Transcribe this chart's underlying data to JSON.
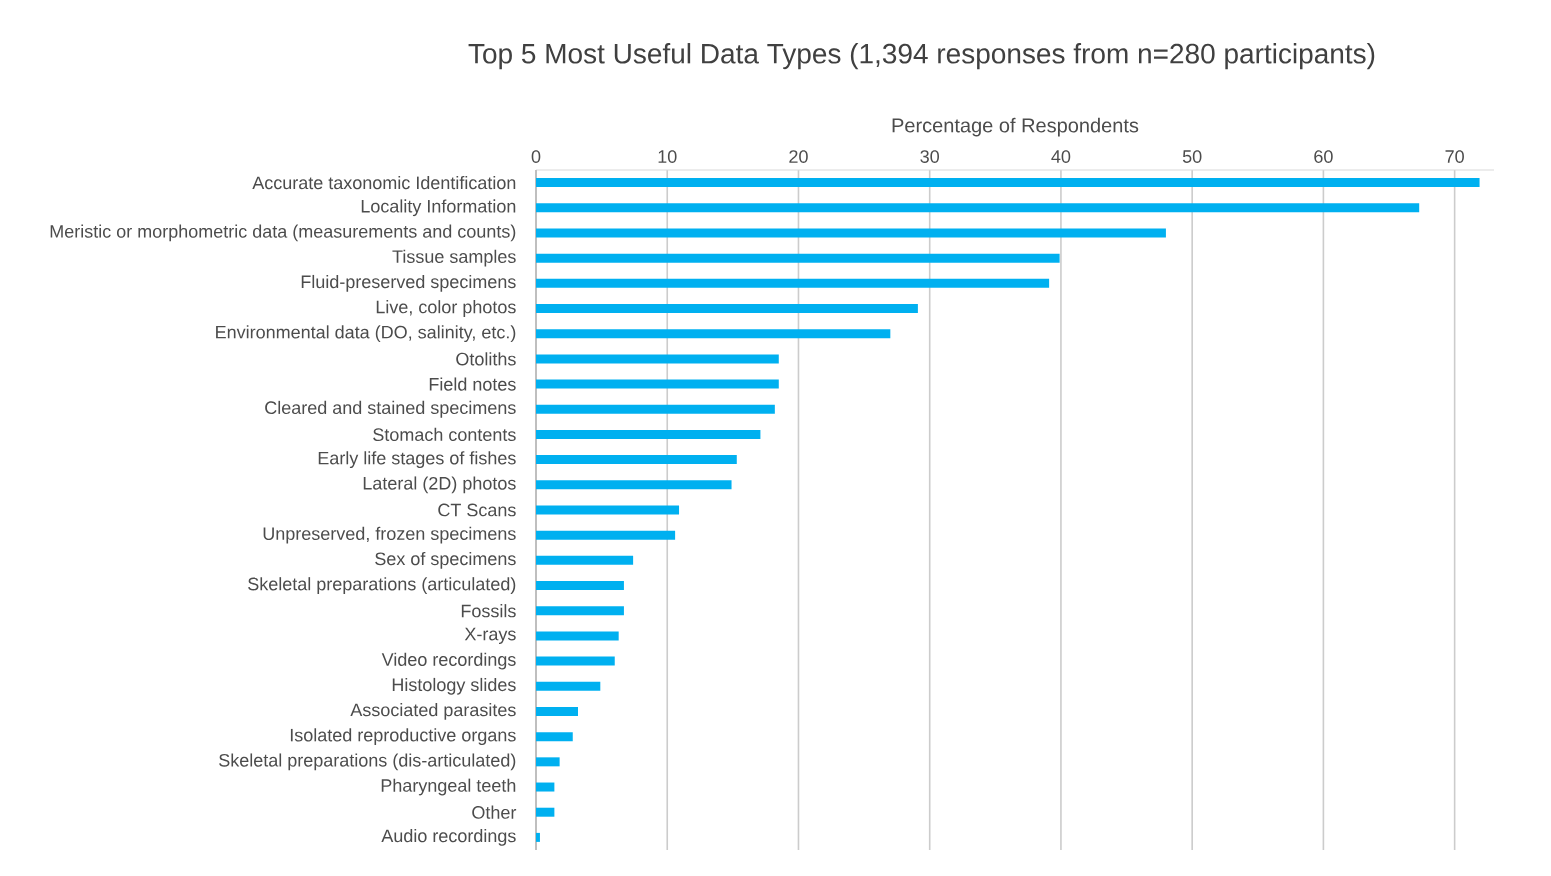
{
  "chart_data": {
    "type": "bar",
    "orientation": "horizontal",
    "title": "Top 5 Most Useful Data Types (1,394 responses from n=280 participants)",
    "xlabel": "Percentage of Respondents",
    "categories": [
      "Accurate taxonomic Identification",
      "Locality Information",
      "Meristic or morphometric data (measurements and counts)",
      "Tissue samples",
      "Fluid-preserved specimens",
      "Live, color photos",
      "Environmental data (DO, salinity, etc.)",
      "Otoliths",
      "Field notes",
      "Cleared and stained specimens",
      "Stomach contents",
      "Early life stages of fishes",
      "Lateral (2D) photos",
      "CT Scans",
      "Unpreserved, frozen specimens",
      "Sex of specimens",
      "Skeletal preparations (articulated)",
      "Fossils",
      "X-rays",
      "Video recordings",
      "Histology slides",
      "Associated parasites",
      "Isolated reproductive organs",
      "Skeletal preparations (dis-articulated)",
      "Pharyngeal teeth",
      "Other",
      "Audio recordings"
    ],
    "values": [
      71.9,
      67.3,
      48.0,
      39.9,
      39.1,
      29.1,
      27.0,
      18.5,
      18.5,
      18.2,
      17.1,
      15.3,
      14.9,
      10.9,
      10.6,
      7.4,
      6.7,
      6.7,
      6.3,
      6.0,
      4.9,
      3.2,
      2.8,
      1.8,
      1.4,
      1.4,
      0.3
    ],
    "color": "#00b0f0",
    "xlim": [
      0,
      73
    ],
    "xticks": [
      0,
      10,
      20,
      30,
      40,
      50,
      60,
      70
    ],
    "grid": "x"
  }
}
